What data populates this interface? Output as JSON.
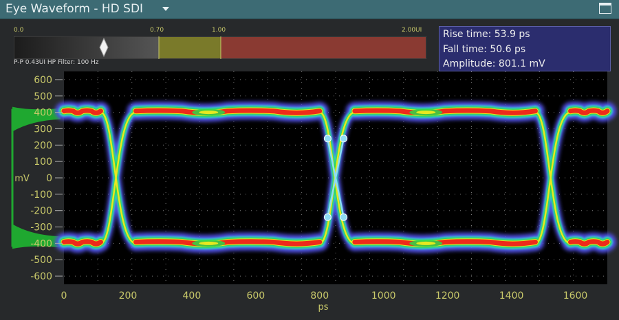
{
  "window": {
    "title": "Eye Waveform - HD SDI"
  },
  "colors": {
    "titlebar": "#3d6b74",
    "axis_text": "#c9c96a",
    "measure_box": "#2b2d6e",
    "trace_red": "#ee2a1a",
    "trace_green": "#2bd94a",
    "trace_blue": "#5050e0",
    "histogram": "#1fa830",
    "cursor": "#8fdcf5"
  },
  "jitter_scale": {
    "labels": [
      "0.0",
      "0.70",
      "1.00",
      "2.00UI"
    ],
    "ui_values": [
      0.0,
      0.7,
      1.0,
      2.0
    ],
    "marker_ui": 0.43
  },
  "info_text": "P-P 0.43UI HP Filter: 100 Hz",
  "measurements": [
    "Rise time: 53.9 ps",
    "Fall time: 50.6 ps",
    "Amplitude: 801.1 mV"
  ],
  "chart_data": {
    "type": "scatter",
    "title": "",
    "xlabel": "ps",
    "ylabel": "mV",
    "xlim": [
      0,
      1700
    ],
    "ylim": [
      -650,
      650
    ],
    "xticks": [
      0,
      200,
      400,
      600,
      800,
      1000,
      1200,
      1400,
      1600
    ],
    "yticks": [
      600,
      500,
      400,
      300,
      200,
      100,
      0,
      -100,
      -200,
      -300,
      -400,
      -500,
      -600
    ],
    "grid": true,
    "eye": {
      "high_level_mv": 400,
      "low_level_mv": -400,
      "crossings_ps": [
        170,
        855,
        1530
      ],
      "transition_width_ps": 55
    },
    "cursor_points": [
      {
        "x": 825,
        "y": 240
      },
      {
        "x": 875,
        "y": 240
      },
      {
        "x": 825,
        "y": -240
      },
      {
        "x": 875,
        "y": -240
      }
    ]
  }
}
